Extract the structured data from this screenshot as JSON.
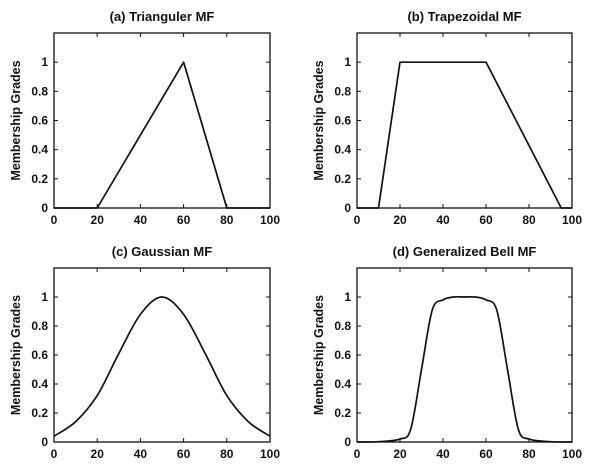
{
  "chart_data": [
    {
      "type": "line",
      "title": "(a) Trianguler MF",
      "ylabel": "Membership Grades",
      "xlabel": "",
      "xlim": [
        0,
        100
      ],
      "ylim": [
        0,
        1.2
      ],
      "xticks": [
        "0",
        "20",
        "40",
        "60",
        "80",
        "100"
      ],
      "yticks": [
        "0",
        "0.2",
        "0.4",
        "0.6",
        "0.8",
        "1"
      ],
      "x": [
        0,
        20,
        60,
        80,
        100
      ],
      "y": [
        0,
        0,
        1,
        0,
        0
      ]
    },
    {
      "type": "line",
      "title": "(b) Trapezoidal MF",
      "ylabel": "Membership Grades",
      "xlabel": "",
      "xlim": [
        0,
        100
      ],
      "ylim": [
        0,
        1.2
      ],
      "xticks": [
        "0",
        "20",
        "40",
        "60",
        "80",
        "100"
      ],
      "yticks": [
        "0",
        "0.2",
        "0.4",
        "0.6",
        "0.8",
        "1"
      ],
      "x": [
        0,
        10,
        20,
        60,
        95,
        100
      ],
      "y": [
        0,
        0,
        1,
        1,
        0,
        0
      ]
    },
    {
      "type": "line",
      "title": "(c) Gaussian MF",
      "ylabel": "Membership Grades",
      "xlabel": "",
      "xlim": [
        0,
        100
      ],
      "ylim": [
        0,
        1.2
      ],
      "xticks": [
        "0",
        "20",
        "40",
        "60",
        "80",
        "100"
      ],
      "yticks": [
        "0",
        "0.2",
        "0.4",
        "0.6",
        "0.8",
        "1"
      ],
      "x": [
        0,
        10,
        20,
        30,
        40,
        50,
        60,
        70,
        80,
        90,
        100
      ],
      "y": [
        0.04,
        0.14,
        0.32,
        0.61,
        0.88,
        1.0,
        0.88,
        0.61,
        0.32,
        0.14,
        0.04
      ]
    },
    {
      "type": "line",
      "title": "(d) Generalized Bell MF",
      "ylabel": "Membership Grades",
      "xlabel": "",
      "xlim": [
        0,
        100
      ],
      "ylim": [
        0,
        1.2
      ],
      "xticks": [
        "0",
        "20",
        "40",
        "60",
        "80",
        "100"
      ],
      "yticks": [
        "0",
        "0.2",
        "0.4",
        "0.6",
        "0.8",
        "1"
      ],
      "x": [
        0,
        10,
        20,
        25,
        30,
        35,
        40,
        45,
        50,
        55,
        60,
        65,
        70,
        75,
        80,
        90,
        100
      ],
      "y": [
        0.0,
        0.002,
        0.02,
        0.09,
        0.5,
        0.91,
        0.98,
        1.0,
        1.0,
        1.0,
        0.98,
        0.91,
        0.5,
        0.09,
        0.02,
        0.002,
        0.0
      ]
    }
  ]
}
